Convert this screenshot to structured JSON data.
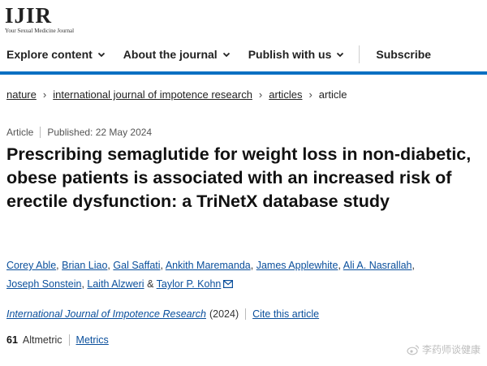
{
  "logo": {
    "main": "IJIR",
    "sub": "Your Sexual Medicine Journal"
  },
  "nav": {
    "items": [
      {
        "label": "Explore content",
        "has_dropdown": true
      },
      {
        "label": "About the journal",
        "has_dropdown": true
      },
      {
        "label": "Publish with us",
        "has_dropdown": true
      },
      {
        "label": "Subscribe",
        "has_dropdown": false
      }
    ]
  },
  "breadcrumb": [
    "nature",
    "international journal of impotence research",
    "articles",
    "article"
  ],
  "article": {
    "type": "Article",
    "published": "Published: 22 May 2024",
    "title": "Prescribing semaglutide for weight loss in non-diabetic, obese patients is associated with an increased risk of erectile dysfunction: a TriNetX database study",
    "authors": [
      "Corey Able",
      "Brian Liao",
      "Gal Saffati",
      "Ankith Maremanda",
      "James Applewhite",
      "Ali A. Nasrallah",
      "Joseph Sonstein",
      "Laith Alzweri",
      "Taylor P. Kohn"
    ],
    "author_separators": [
      ",",
      ",",
      ",",
      ",",
      ",",
      ",",
      ",",
      "&"
    ],
    "journal": "International Journal of Impotence Research",
    "year": "(2024)",
    "cite_label": "Cite this article",
    "altmetric_count": "61",
    "altmetric_label": "Altmetric",
    "metrics_label": "Metrics"
  },
  "watermark": "李药师谈健康",
  "colors": {
    "accent": "#0a6fc2",
    "link": "#0a4f9c"
  }
}
